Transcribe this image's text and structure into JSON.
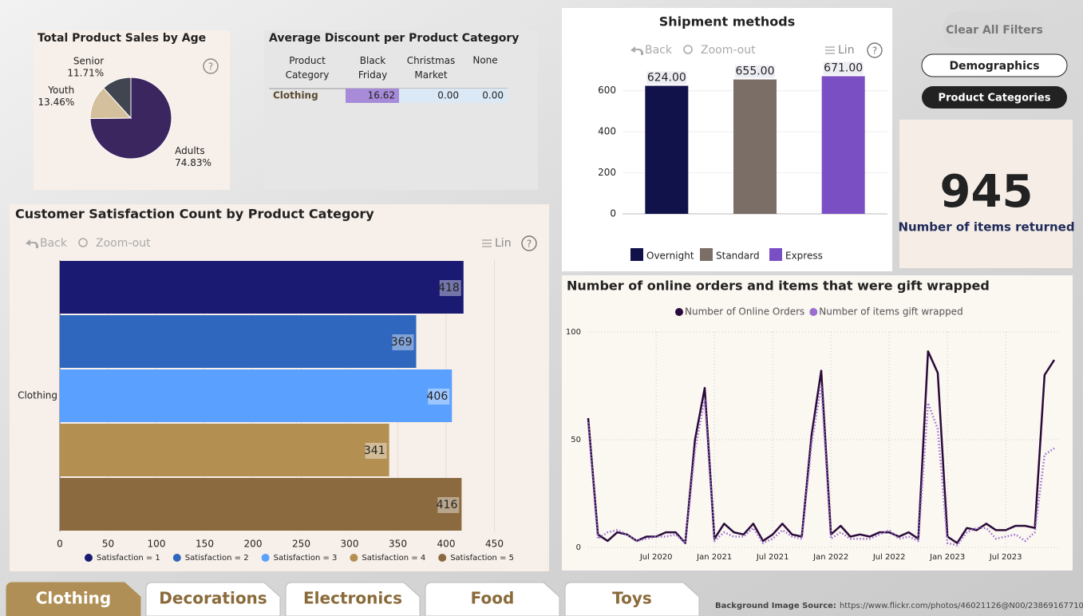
{
  "chart_data": [
    {
      "type": "pie",
      "title": "Total Product Sales by Age",
      "categories": [
        "Adults",
        "Youth",
        "Senior"
      ],
      "values": [
        74.83,
        13.46,
        11.71
      ],
      "value_labels": [
        "74.83%",
        "13.46%",
        "11.71%"
      ],
      "colors": [
        "#3b2660",
        "#d4c09c",
        "#40454f"
      ]
    },
    {
      "type": "bar",
      "orientation": "horizontal",
      "title": "Customer Satisfaction Count by Product Category",
      "categories": [
        "Clothing"
      ],
      "series": [
        {
          "name": "Satisfaction = 1",
          "color": "#1a1a73",
          "values": [
            418
          ]
        },
        {
          "name": "Satisfaction = 2",
          "color": "#2f67bf",
          "values": [
            369
          ]
        },
        {
          "name": "Satisfaction = 3",
          "color": "#5aa0ff",
          "values": [
            406
          ]
        },
        {
          "name": "Satisfaction = 4",
          "color": "#b38f52",
          "values": [
            341
          ]
        },
        {
          "name": "Satisfaction = 5",
          "color": "#8a6a3e",
          "values": [
            416
          ]
        }
      ],
      "xlim": [
        0,
        500
      ],
      "xticks": [
        0,
        50,
        100,
        150,
        200,
        250,
        300,
        350,
        400,
        450
      ],
      "grid": true
    },
    {
      "type": "bar",
      "orientation": "vertical",
      "title": "Shipment methods",
      "series": [
        {
          "name": "Overnight",
          "color": "#12124a",
          "values": [
            624
          ],
          "value_labels": [
            "624.00"
          ]
        },
        {
          "name": "Standard",
          "color": "#7a6e66",
          "values": [
            655
          ],
          "value_labels": [
            "655.00"
          ]
        },
        {
          "name": "Express",
          "color": "#7b4fc4",
          "values": [
            671
          ],
          "value_labels": [
            "671.00"
          ]
        }
      ],
      "ylim": [
        0,
        700
      ],
      "yticks": [
        0,
        200,
        400,
        600
      ],
      "grid": true
    },
    {
      "type": "line",
      "title": "Number of online orders and items that were gift wrapped",
      "x": [
        "2019-12",
        "2020-01",
        "2020-02",
        "2020-03",
        "2020-04",
        "2020-05",
        "2020-06",
        "2020-07",
        "2020-08",
        "2020-09",
        "2020-10",
        "2020-11",
        "2020-12",
        "2021-01",
        "2021-02",
        "2021-03",
        "2021-04",
        "2021-05",
        "2021-06",
        "2021-07",
        "2021-08",
        "2021-09",
        "2021-10",
        "2021-11",
        "2021-12",
        "2022-01",
        "2022-02",
        "2022-03",
        "2022-04",
        "2022-05",
        "2022-06",
        "2022-07",
        "2022-08",
        "2022-09",
        "2022-10",
        "2022-11",
        "2022-12",
        "2023-01",
        "2023-02",
        "2023-03",
        "2023-04",
        "2023-05",
        "2023-06",
        "2023-07",
        "2023-08",
        "2023-09",
        "2023-10",
        "2023-11",
        "2023-12"
      ],
      "series": [
        {
          "name": "Number of Online Orders",
          "color": "#2a0a3a",
          "style": "solid",
          "values": [
            60,
            6,
            3,
            7,
            6,
            3,
            5,
            5,
            7,
            7,
            2,
            50,
            74,
            4,
            11,
            7,
            6,
            11,
            3,
            6,
            11,
            6,
            5,
            52,
            82,
            6,
            10,
            5,
            6,
            5,
            7,
            7,
            5,
            7,
            4,
            91,
            81,
            5,
            2,
            9,
            8,
            11,
            8,
            8,
            10,
            10,
            9,
            80,
            87
          ]
        },
        {
          "name": "Number of items gift wrapped",
          "color": "#9a6fd0",
          "style": "dotted",
          "values": [
            58,
            4,
            7,
            8,
            6,
            3,
            4,
            5,
            5,
            6,
            2,
            45,
            69,
            3,
            7,
            5,
            5,
            9,
            2,
            4,
            8,
            5,
            4,
            48,
            75,
            4,
            7,
            4,
            4,
            4,
            6,
            8,
            4,
            5,
            3,
            67,
            55,
            2,
            1,
            7,
            9,
            9,
            4,
            5,
            6,
            3,
            7,
            43,
            46
          ]
        }
      ],
      "xlim": [
        "2019-12",
        "2023-12"
      ],
      "xticks": [
        {
          "value": "2020-07",
          "label": "Jul 2020"
        },
        {
          "value": "2021-01",
          "label": "Jan 2021"
        },
        {
          "value": "2021-07",
          "label": "Jul 2021"
        },
        {
          "value": "2022-01",
          "label": "Jan 2022"
        },
        {
          "value": "2022-07",
          "label": "Jul 2022"
        },
        {
          "value": "2023-01",
          "label": "Jan 2023"
        },
        {
          "value": "2023-07",
          "label": "Jul 2023"
        }
      ],
      "ylim": [
        0,
        100
      ],
      "yticks": [
        0,
        50,
        100
      ],
      "grid": true
    }
  ],
  "table": {
    "title": "Average Discount per Product Category",
    "header": [
      "Product Category",
      "Black Friday",
      "Christmas Market",
      "None"
    ],
    "rows": [
      [
        "Clothing",
        "16.62",
        "0.00",
        "0.00"
      ]
    ]
  },
  "toolbar": {
    "back": "Back",
    "zoom_out": "Zoom-out",
    "lin": "Lin",
    "help": "?"
  },
  "kpi": {
    "value": "945",
    "label": "Number of items returned"
  },
  "buttons": {
    "clear": "Clear All Filters",
    "demographics": "Demographics",
    "product_categories": "Product Categories"
  },
  "tabs": [
    "Clothing",
    "Decorations",
    "Electronics",
    "Food",
    "Toys"
  ],
  "footer": {
    "label": "Background Image Source:",
    "url": "https://www.flickr.com/photos/46021126@N00/23869167710/"
  }
}
